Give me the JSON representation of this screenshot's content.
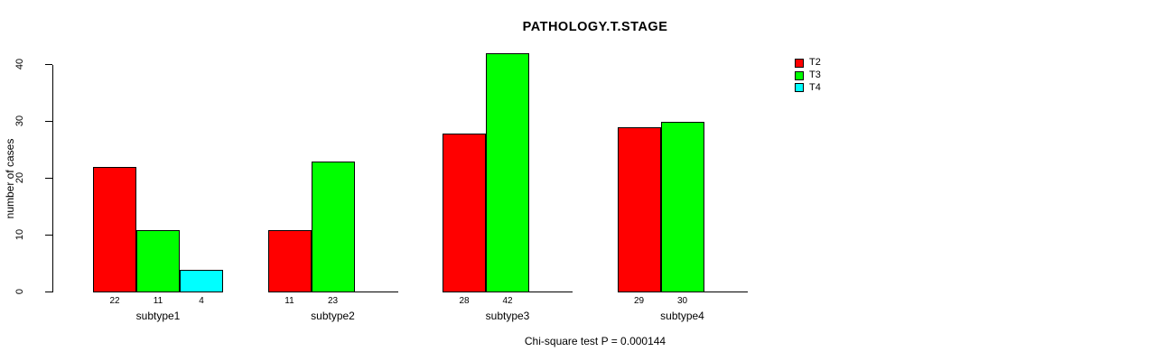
{
  "chart_data": {
    "type": "bar",
    "title": "PATHOLOGY.T.STAGE",
    "xlabel": "",
    "ylabel": "number of cases",
    "categories": [
      "subtype1",
      "subtype2",
      "subtype3",
      "subtype4"
    ],
    "series": [
      {
        "name": "T2",
        "color": "#ff0000",
        "values": [
          22,
          11,
          28,
          29
        ]
      },
      {
        "name": "T3",
        "color": "#00ff00",
        "values": [
          11,
          23,
          42,
          30
        ]
      },
      {
        "name": "T4",
        "color": "#00ffff",
        "values": [
          4,
          0,
          0,
          0
        ]
      }
    ],
    "ylim": [
      0,
      40
    ],
    "yticks": [
      0,
      10,
      20,
      30,
      40
    ],
    "grid": false,
    "legend_position": "top-right",
    "bar_value_labels_shown": true,
    "annotation": "Chi-square test P = 0.000144"
  }
}
